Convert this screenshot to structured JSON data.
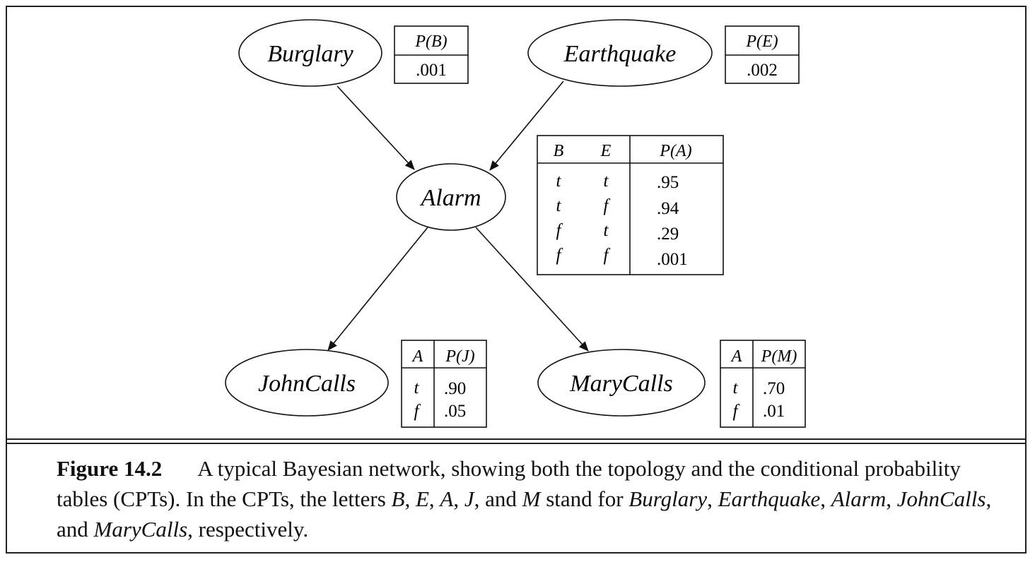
{
  "nodes": {
    "burglary": "Burglary",
    "earthquake": "Earthquake",
    "alarm": "Alarm",
    "johncalls": "JohnCalls",
    "marycalls": "MaryCalls"
  },
  "cpt_b": {
    "header": "P(B)",
    "value": ".001"
  },
  "cpt_e": {
    "header": "P(E)",
    "value": ".002"
  },
  "cpt_a": {
    "headers": [
      "B",
      "E",
      "P(A)"
    ],
    "rows": [
      [
        "t",
        "t",
        ".95"
      ],
      [
        "t",
        "f",
        ".94"
      ],
      [
        "f",
        "t",
        ".29"
      ],
      [
        "f",
        "f",
        ".001"
      ]
    ]
  },
  "cpt_j": {
    "headers": [
      "A",
      "P(J)"
    ],
    "rows": [
      [
        "t",
        ".90"
      ],
      [
        "f",
        ".05"
      ]
    ]
  },
  "cpt_m": {
    "headers": [
      "A",
      "P(M)"
    ],
    "rows": [
      [
        "t",
        ".70"
      ],
      [
        "f",
        ".01"
      ]
    ]
  },
  "caption": {
    "label": "Figure 14.2",
    "text1": "A typical Bayesian network, showing both the topology and the conditional probability tables (CPTs). In the CPTs, the letters ",
    "b": "B",
    "e": "E",
    "a": "A",
    "j": "J",
    "m": "M",
    "text2": " stand for ",
    "burglary": "Burglary",
    "earthquake": "Earthquake",
    "alarm": "Alarm",
    "johncalls": "JohnCalls",
    "marycalls": "MaryCalls",
    "text3": ", respectively."
  }
}
